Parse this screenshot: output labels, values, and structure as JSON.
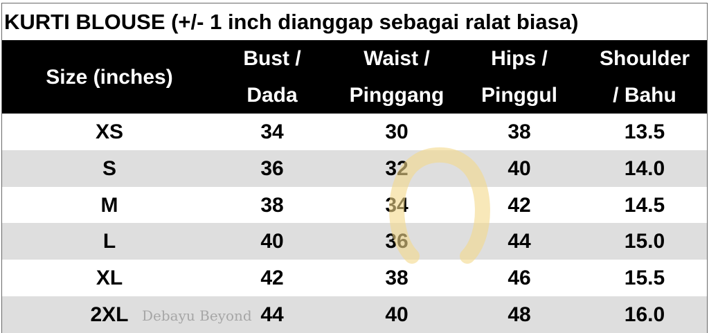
{
  "title": "KURTI BLOUSE (+/- 1 inch dianggap sebagai ralat biasa)",
  "headers": [
    {
      "line1": "Size (inches)",
      "line2": ""
    },
    {
      "line1": "Bust /",
      "line2": "Dada"
    },
    {
      "line1": "Waist /",
      "line2": "Pinggang"
    },
    {
      "line1": "Hips /",
      "line2": "Pinggul"
    },
    {
      "line1": "Shoulder",
      "line2": "/ Bahu"
    }
  ],
  "rows": [
    [
      "XS",
      "34",
      "30",
      "38",
      "13.5"
    ],
    [
      "S",
      "36",
      "32",
      "40",
      "14.0"
    ],
    [
      "M",
      "38",
      "34",
      "42",
      "14.5"
    ],
    [
      "L",
      "40",
      "36",
      "44",
      "15.0"
    ],
    [
      "XL",
      "42",
      "38",
      "46",
      "15.5"
    ],
    [
      "2XL",
      "44",
      "40",
      "48",
      "16.0"
    ]
  ],
  "watermark": {
    "text": "Debayu Beyond",
    "icon": "omega-logo",
    "color": "#f3d98a"
  },
  "colors": {
    "header_bg": "#000000",
    "alt_row": "#dedede"
  }
}
